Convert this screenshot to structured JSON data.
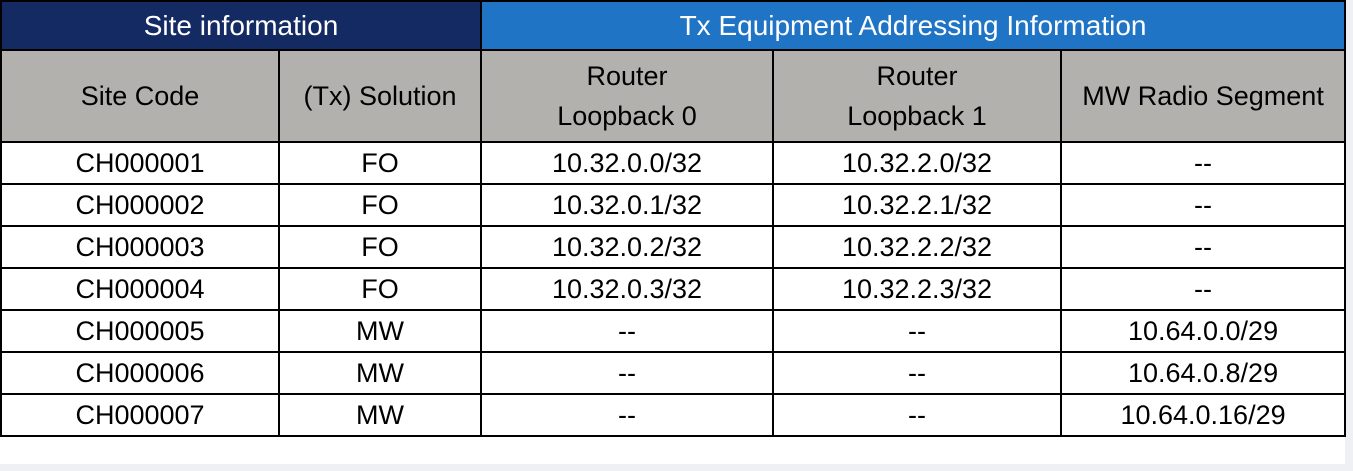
{
  "groups": {
    "site": "Site information",
    "tx": "Tx Equipment Addressing Information"
  },
  "columns": {
    "site_code": "Site Code",
    "solution": "(Tx) Solution",
    "loopback0_line1": "Router",
    "loopback0_line2": "Loopback 0",
    "loopback1_line1": "Router",
    "loopback1_line2": "Loopback 1",
    "mw_segment": "MW Radio Segment"
  },
  "rows": [
    {
      "site_code": "CH000001",
      "solution": "FO",
      "loopback0": "10.32.0.0/32",
      "loopback1": "10.32.2.0/32",
      "mw_segment": "--"
    },
    {
      "site_code": "CH000002",
      "solution": "FO",
      "loopback0": "10.32.0.1/32",
      "loopback1": "10.32.2.1/32",
      "mw_segment": "--"
    },
    {
      "site_code": "CH000003",
      "solution": "FO",
      "loopback0": "10.32.0.2/32",
      "loopback1": "10.32.2.2/32",
      "mw_segment": "--"
    },
    {
      "site_code": "CH000004",
      "solution": "FO",
      "loopback0": "10.32.0.3/32",
      "loopback1": "10.32.2.3/32",
      "mw_segment": "--"
    },
    {
      "site_code": "CH000005",
      "solution": "MW",
      "loopback0": "--",
      "loopback1": "--",
      "mw_segment": "10.64.0.0/29"
    },
    {
      "site_code": "CH000006",
      "solution": "MW",
      "loopback0": "--",
      "loopback1": "--",
      "mw_segment": "10.64.0.8/29"
    },
    {
      "site_code": "CH000007",
      "solution": "MW",
      "loopback0": "--",
      "loopback1": "--",
      "mw_segment": "10.64.0.16/29"
    }
  ],
  "colors": {
    "site_group_header": "#142a63",
    "tx_group_header": "#1f74c6",
    "column_header": "#b3b1ae",
    "border": "#000000"
  }
}
